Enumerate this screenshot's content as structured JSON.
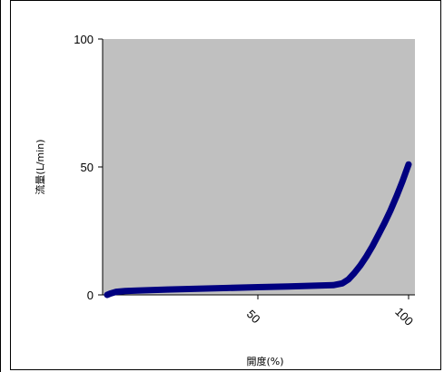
{
  "chart_data": {
    "type": "line",
    "title": "",
    "xlabel": "開度(%)",
    "ylabel": "流量(L/min)",
    "xlim": [
      0,
      100
    ],
    "ylim": [
      0,
      100
    ],
    "x_ticks": [
      50,
      100
    ],
    "y_ticks": [
      0,
      50,
      100
    ],
    "grid": false,
    "legend": "none",
    "plot_background": "#c0c0c0",
    "series": [
      {
        "color": "#000080",
        "x": [
          0,
          1,
          3,
          6,
          10,
          20,
          30,
          40,
          50,
          60,
          70,
          75,
          78,
          80,
          82,
          84,
          86,
          88,
          90,
          92,
          94,
          96,
          98,
          100
        ],
        "y": [
          0,
          0.5,
          1.2,
          1.5,
          1.7,
          2.1,
          2.4,
          2.7,
          3.0,
          3.3,
          3.6,
          3.8,
          4.5,
          6.0,
          8.5,
          11.5,
          15.0,
          19.0,
          23.5,
          28.0,
          33.0,
          38.5,
          44.5,
          51.0
        ]
      }
    ]
  }
}
